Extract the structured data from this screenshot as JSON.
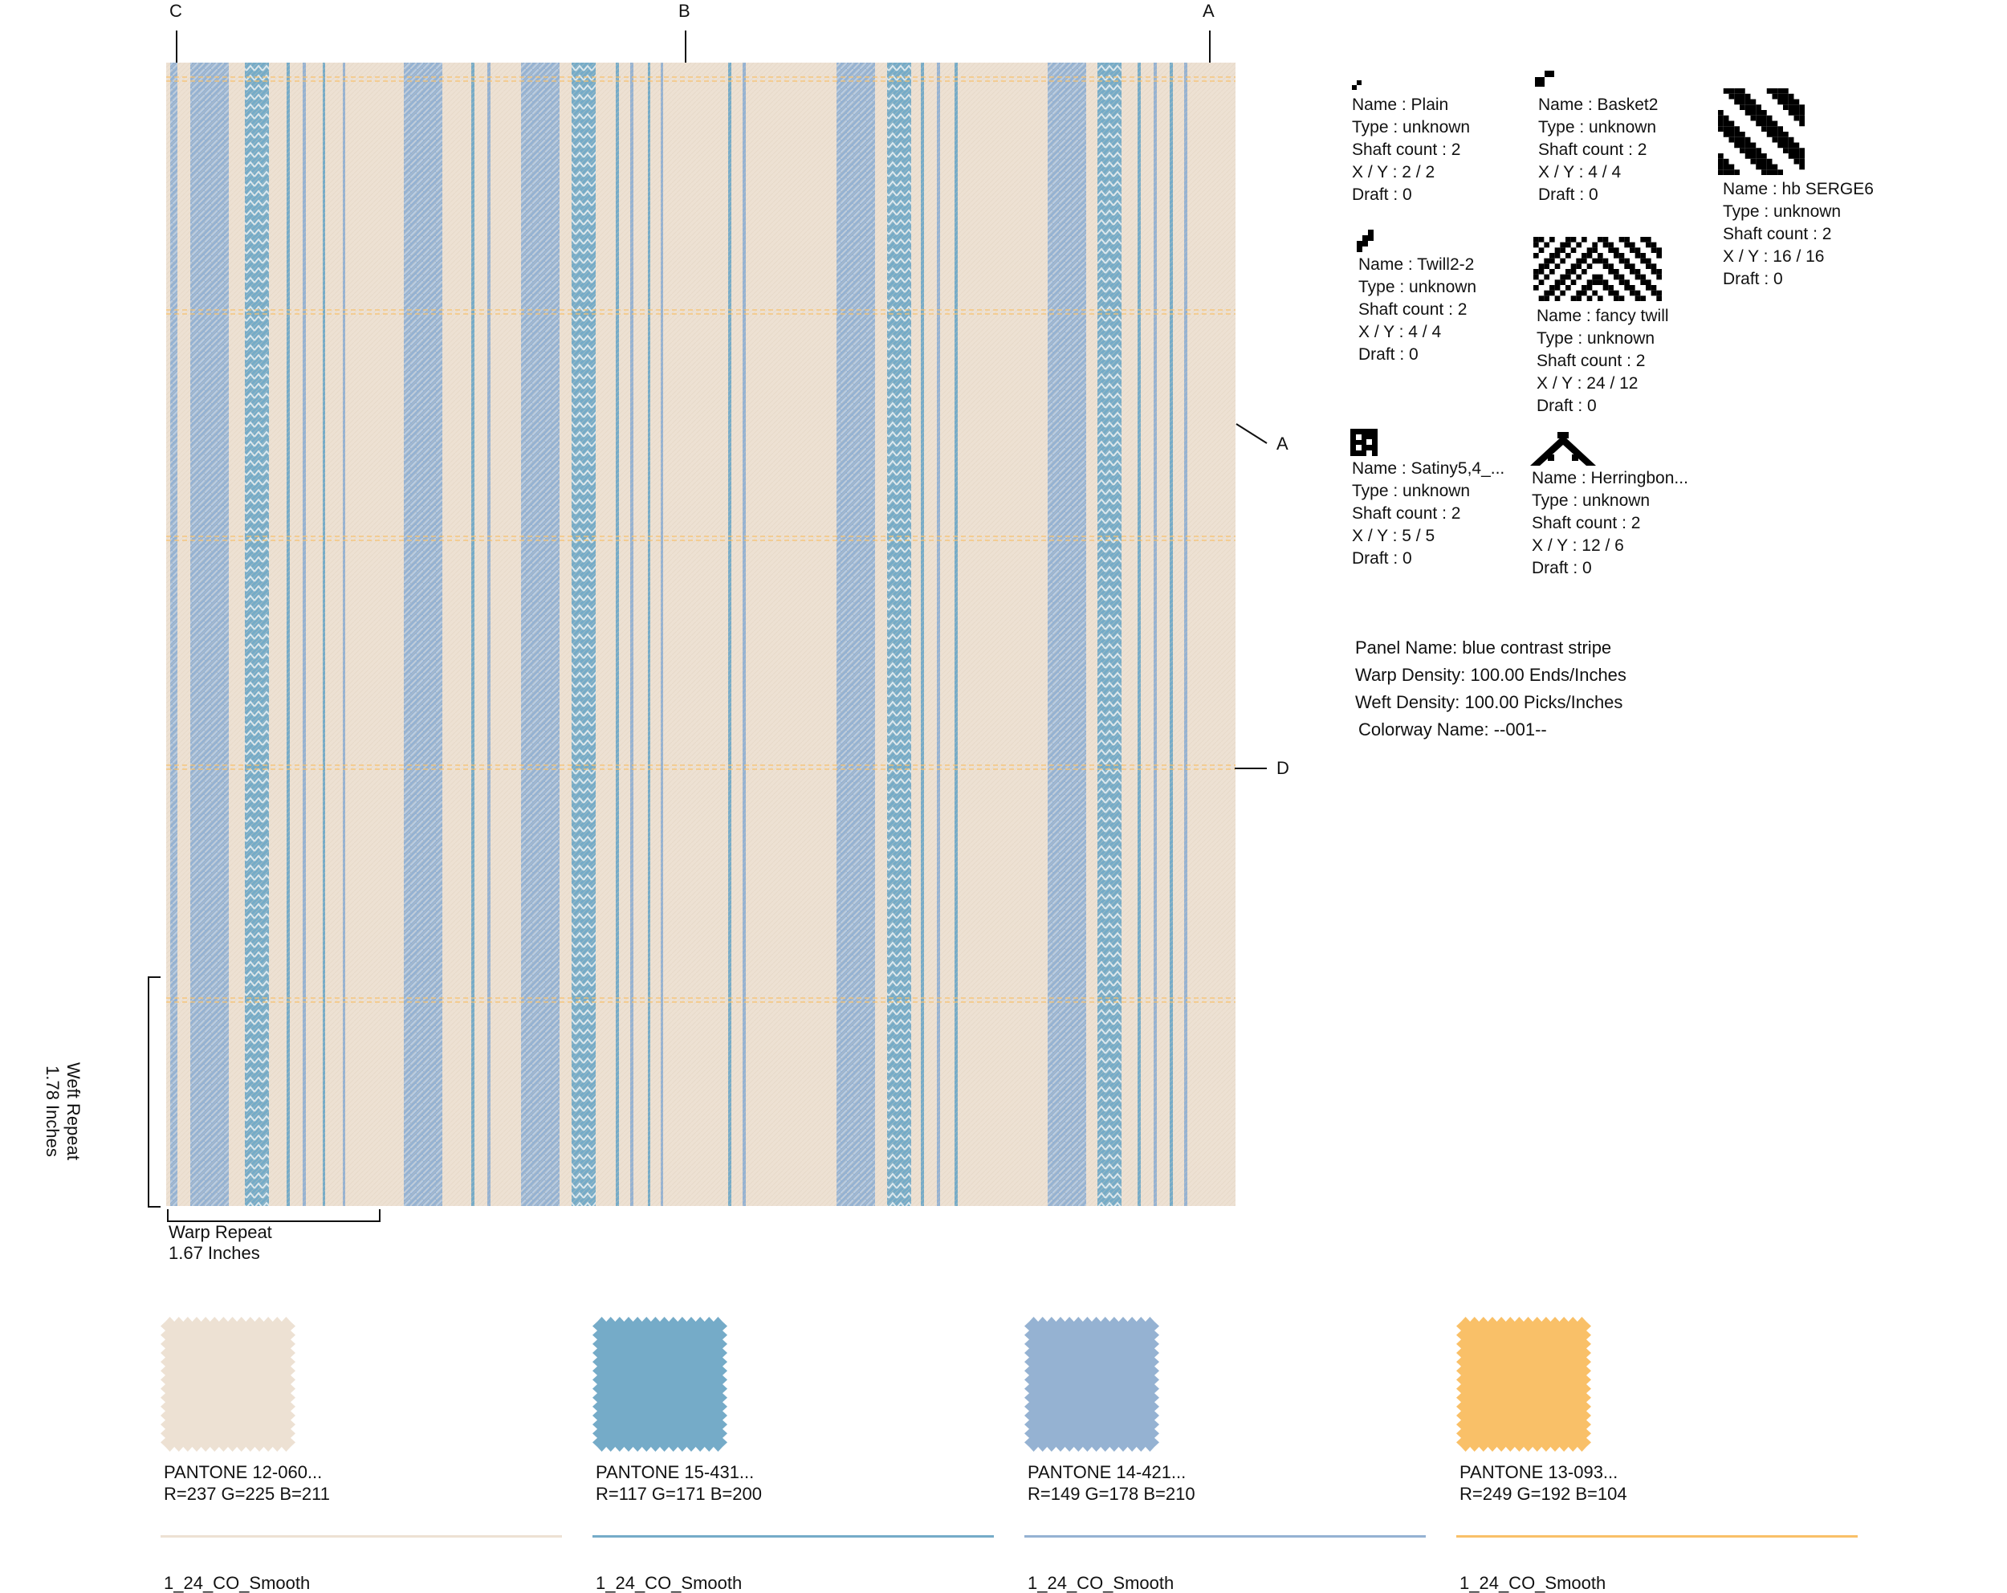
{
  "markers": {
    "top_left": "C",
    "top_center": "B",
    "top_right": "A",
    "side_upper": "A",
    "side_lower": "D"
  },
  "weaves": [
    {
      "name": "Name : Plain",
      "type": "Type : unknown",
      "shaft": "Shaft count : 2",
      "xy": "X / Y : 2 / 2",
      "draft": "Draft : 0"
    },
    {
      "name": "Name : Basket2",
      "type": "Type : unknown",
      "shaft": "Shaft count : 2",
      "xy": "X / Y : 4 / 4",
      "draft": "Draft : 0"
    },
    {
      "name": "Name : hb SERGE6",
      "type": "Type : unknown",
      "shaft": "Shaft count : 2",
      "xy": "X / Y : 16 / 16",
      "draft": "Draft : 0"
    },
    {
      "name": "Name : Twill2-2",
      "type": "Type : unknown",
      "shaft": "Shaft count : 2",
      "xy": "X / Y : 4 / 4",
      "draft": "Draft : 0"
    },
    {
      "name": "Name : fancy twill",
      "type": "Type : unknown",
      "shaft": "Shaft count : 2",
      "xy": "X / Y : 24 / 12",
      "draft": "Draft : 0"
    },
    {
      "name": "Name : Satiny5,4_...",
      "type": "Type : unknown",
      "shaft": "Shaft count : 2",
      "xy": "X / Y : 5 / 5",
      "draft": "Draft : 0"
    },
    {
      "name": "Name : Herringbon...",
      "type": "Type : unknown",
      "shaft": "Shaft count : 2",
      "xy": "X / Y : 12 / 6",
      "draft": "Draft : 0"
    }
  ],
  "panel": {
    "name": "Panel Name: blue contrast stripe",
    "warp_density": "Warp Density: 100.00 Ends/Inches",
    "weft_density": "Weft Density: 100.00 Picks/Inches",
    "colorway": "Colorway Name: --001--"
  },
  "repeats": {
    "weft_label": "Weft Repeat",
    "weft_value": "1.78 Inches",
    "warp_label": "Warp Repeat",
    "warp_value": "1.67 Inches"
  },
  "swatches": [
    {
      "pantone": "PANTONE 12-060...",
      "rgb": "R=237 G=225 B=211",
      "color": "#EDE1D3",
      "yarn": "1_24_CO_Smooth"
    },
    {
      "pantone": "PANTONE 15-431...",
      "rgb": "R=117 G=171 B=200",
      "color": "#75ABC8",
      "yarn": "1_24_CO_Smooth"
    },
    {
      "pantone": "PANTONE 14-421...",
      "rgb": "R=149 G=178 B=210",
      "color": "#95B2D2",
      "yarn": "1_24_CO_Smooth"
    },
    {
      "pantone": "PANTONE 13-093...",
      "rgb": "R=249 G=192 B=104",
      "color": "#F9C068",
      "yarn": "1_24_CO_Smooth"
    }
  ],
  "stripe_colors": {
    "ground": "#EDE1D3",
    "blue": "#75ABC8",
    "light_blue": "#95B2D2",
    "yellow": "#F9C068"
  }
}
